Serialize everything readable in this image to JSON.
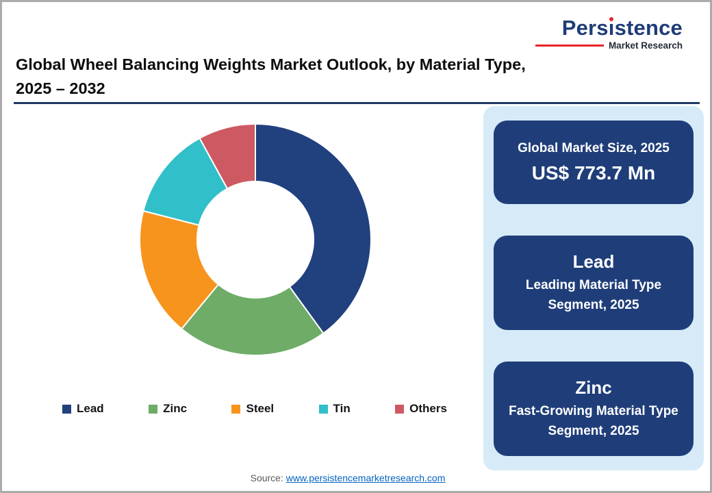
{
  "logo": {
    "part1": "Pers",
    "part_i": "ı",
    "part2": "stence",
    "subtitle": "Market Research"
  },
  "title": {
    "line1": "Global Wheel Balancing Weights Market Outlook, by Material Type,",
    "line2": "2025 – 2032"
  },
  "panel": {
    "boxes": [
      {
        "line1": "Global Market Size, 2025",
        "line2": "US$ 773.7 Mn"
      },
      {
        "line1": "Lead",
        "line2": "Leading Material Type Segment, 2025"
      },
      {
        "line1": "Zinc",
        "line2": "Fast-Growing Material Type Segment, 2025"
      }
    ]
  },
  "source": {
    "label": "Source: ",
    "link_text": "www.persistencemarketresearch.com"
  },
  "chart_data": {
    "type": "pie",
    "subtype": "donut",
    "title": "Global Wheel Balancing Weights Market Outlook, by Material Type, 2025 – 2032",
    "categories": [
      "Lead",
      "Zinc",
      "Steel",
      "Tin",
      "Others"
    ],
    "values": [
      40,
      21,
      18,
      13,
      8
    ],
    "colors": [
      "#21407e",
      "#6eac68",
      "#f7941e",
      "#31bfc9",
      "#cd5a63"
    ],
    "legend_position": "bottom",
    "annotations": {
      "global_market_size_2025": "US$ 773.7 Mn",
      "leading_material_type_segment_2025": "Lead",
      "fast_growing_material_type_segment_2025": "Zinc"
    }
  }
}
